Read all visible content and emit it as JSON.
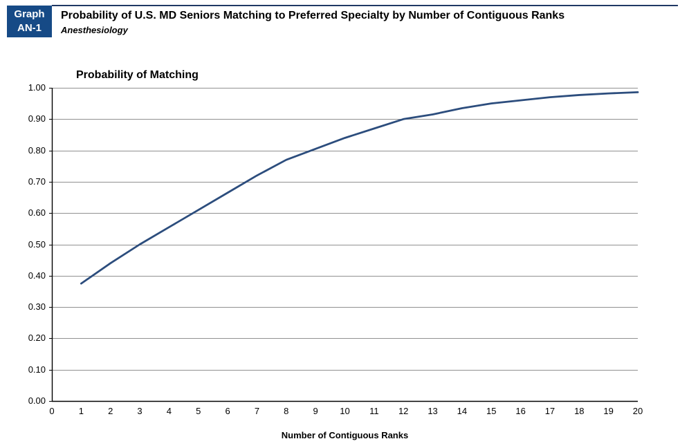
{
  "header": {
    "badge": {
      "line1": "Graph",
      "line2": "AN-1",
      "bg_color": "#164A86",
      "text_color": "#FFFFFF"
    },
    "title": "Probability of U.S. MD Seniors Matching to Preferred Specialty by Number of Contiguous Ranks",
    "subtitle": "Anesthesiology",
    "rule_color": "#1F3864"
  },
  "chart_data": {
    "type": "line",
    "title": "Probability of Matching",
    "xlabel": "Number of Contiguous Ranks",
    "ylabel": "Probability of Matching",
    "x": [
      1,
      2,
      3,
      4,
      5,
      6,
      7,
      8,
      9,
      10,
      11,
      12,
      13,
      14,
      15,
      16,
      17,
      18,
      19,
      20
    ],
    "values": [
      0.375,
      0.44,
      0.5,
      0.555,
      0.61,
      0.665,
      0.72,
      0.77,
      0.805,
      0.84,
      0.87,
      0.9,
      0.915,
      0.935,
      0.95,
      0.96,
      0.97,
      0.977,
      0.982,
      0.986
    ],
    "xlim": [
      0,
      20
    ],
    "ylim": [
      0,
      1
    ],
    "xticks": [
      0,
      1,
      2,
      3,
      4,
      5,
      6,
      7,
      8,
      9,
      10,
      11,
      12,
      13,
      14,
      15,
      16,
      17,
      18,
      19,
      20
    ],
    "yticks": [
      "0.00",
      "0.10",
      "0.20",
      "0.30",
      "0.40",
      "0.50",
      "0.60",
      "0.70",
      "0.80",
      "0.90",
      "1.00"
    ],
    "grid": "horizontal",
    "legend": "none",
    "line_color": "#2C4D7D",
    "gridline_color": "#909090",
    "axis_color": "#000000"
  }
}
